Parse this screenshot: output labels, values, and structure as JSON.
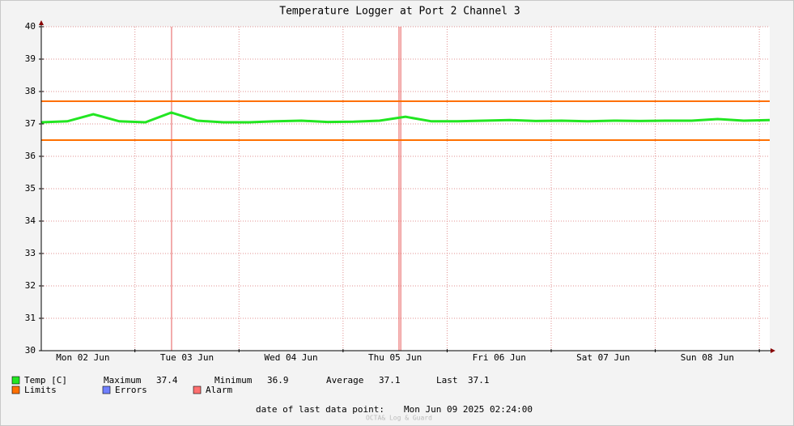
{
  "chart_data": {
    "type": "line",
    "title": "Temperature Logger at Port 2 Channel 3",
    "x": [
      "2025-06-02T02:24",
      "2025-06-02T08:24",
      "2025-06-02T14:24",
      "2025-06-02T20:24",
      "2025-06-03T02:24",
      "2025-06-03T08:24",
      "2025-06-03T14:24",
      "2025-06-03T20:24",
      "2025-06-04T02:24",
      "2025-06-04T08:24",
      "2025-06-04T14:24",
      "2025-06-04T20:24",
      "2025-06-05T02:24",
      "2025-06-05T08:24",
      "2025-06-05T14:24",
      "2025-06-05T20:24",
      "2025-06-06T02:24",
      "2025-06-06T08:24",
      "2025-06-06T14:24",
      "2025-06-06T20:24",
      "2025-06-07T02:24",
      "2025-06-07T08:24",
      "2025-06-07T14:24",
      "2025-06-07T20:24",
      "2025-06-08T02:24",
      "2025-06-08T08:24",
      "2025-06-08T14:24",
      "2025-06-08T20:24",
      "2025-06-09T02:24"
    ],
    "series": [
      {
        "name": "Temp [C]",
        "color": "#22e622",
        "values": [
          37.05,
          37.08,
          37.3,
          37.08,
          37.05,
          37.35,
          37.1,
          37.05,
          37.05,
          37.08,
          37.1,
          37.06,
          37.07,
          37.1,
          37.22,
          37.08,
          37.08,
          37.1,
          37.12,
          37.09,
          37.1,
          37.08,
          37.1,
          37.09,
          37.1,
          37.1,
          37.15,
          37.1,
          37.12
        ]
      }
    ],
    "limits": {
      "name": "Limits",
      "color": "#ff7000",
      "values": [
        36.5,
        37.7
      ]
    },
    "errors": {
      "name": "Errors",
      "color": "#7080ff"
    },
    "alarm": {
      "name": "Alarm",
      "color": "#ff7070",
      "x": [
        "2025-06-03T08:27",
        "2025-06-05T12:54",
        "2025-06-05T13:18"
      ]
    },
    "stats": [
      {
        "label": "Maximum",
        "value": 37.4
      },
      {
        "label": "Minimum",
        "value": 36.9
      },
      {
        "label": "Average",
        "value": 37.1
      },
      {
        "label": "Last",
        "value": 37.1
      }
    ],
    "xlim": [
      "2025-06-02T02:24",
      "2025-06-09T02:24"
    ],
    "xticks": [
      {
        "value": "2025-06-02T12:00",
        "label": "Mon 02 Jun"
      },
      {
        "value": "2025-06-03T12:00",
        "label": "Tue 03 Jun"
      },
      {
        "value": "2025-06-04T12:00",
        "label": "Wed 04 Jun"
      },
      {
        "value": "2025-06-05T12:00",
        "label": "Thu 05 Jun"
      },
      {
        "value": "2025-06-06T12:00",
        "label": "Fri 06 Jun"
      },
      {
        "value": "2025-06-07T12:00",
        "label": "Sat 07 Jun"
      },
      {
        "value": "2025-06-08T12:00",
        "label": "Sun 08 Jun"
      }
    ],
    "xgrid": [
      "2025-06-03T00:00",
      "2025-06-04T00:00",
      "2025-06-05T00:00",
      "2025-06-06T00:00",
      "2025-06-07T00:00",
      "2025-06-08T00:00",
      "2025-06-09T00:00"
    ],
    "ylim": [
      30,
      40
    ],
    "yticks": [
      30,
      31,
      32,
      33,
      34,
      35,
      36,
      37,
      38,
      39,
      40
    ],
    "grid": true,
    "footer": {
      "label": "date of last data point:",
      "value": "Mon Jun 09 2025 02:24:00"
    },
    "watermark": "OCTA& Log & Guard"
  }
}
